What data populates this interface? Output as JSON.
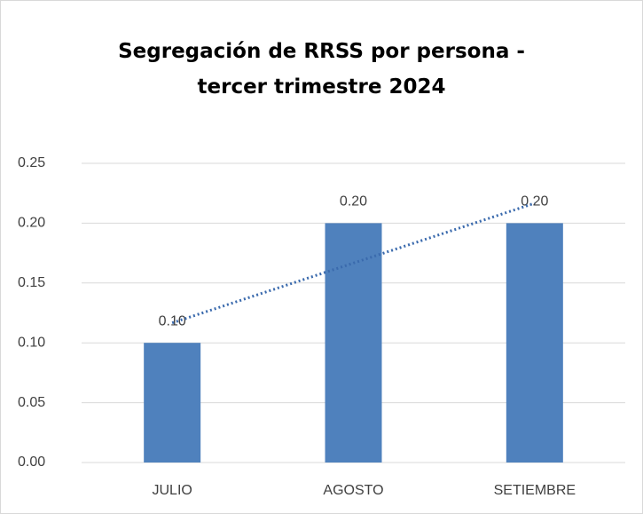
{
  "chart_data": {
    "type": "bar",
    "title": "Segregación de RRSS por persona - tercer trimestre 2024",
    "categories": [
      "JULIO",
      "AGOSTO",
      "SETIEMBRE"
    ],
    "values": [
      0.1,
      0.2,
      0.2
    ],
    "value_labels": [
      "0.10",
      "0.20",
      "0.20"
    ],
    "color": "#4f81bd",
    "trendline": "linear",
    "trendline_color": "#3a6aad",
    "ylim": [
      0,
      0.25
    ],
    "yticks": [
      {
        "value": 0,
        "label": "0.00"
      },
      0.05,
      {
        "value": 0.1,
        "label": "0.10"
      },
      0.15,
      {
        "value": 0.2,
        "label": "0.20"
      },
      0.25
    ],
    "grid": true
  }
}
